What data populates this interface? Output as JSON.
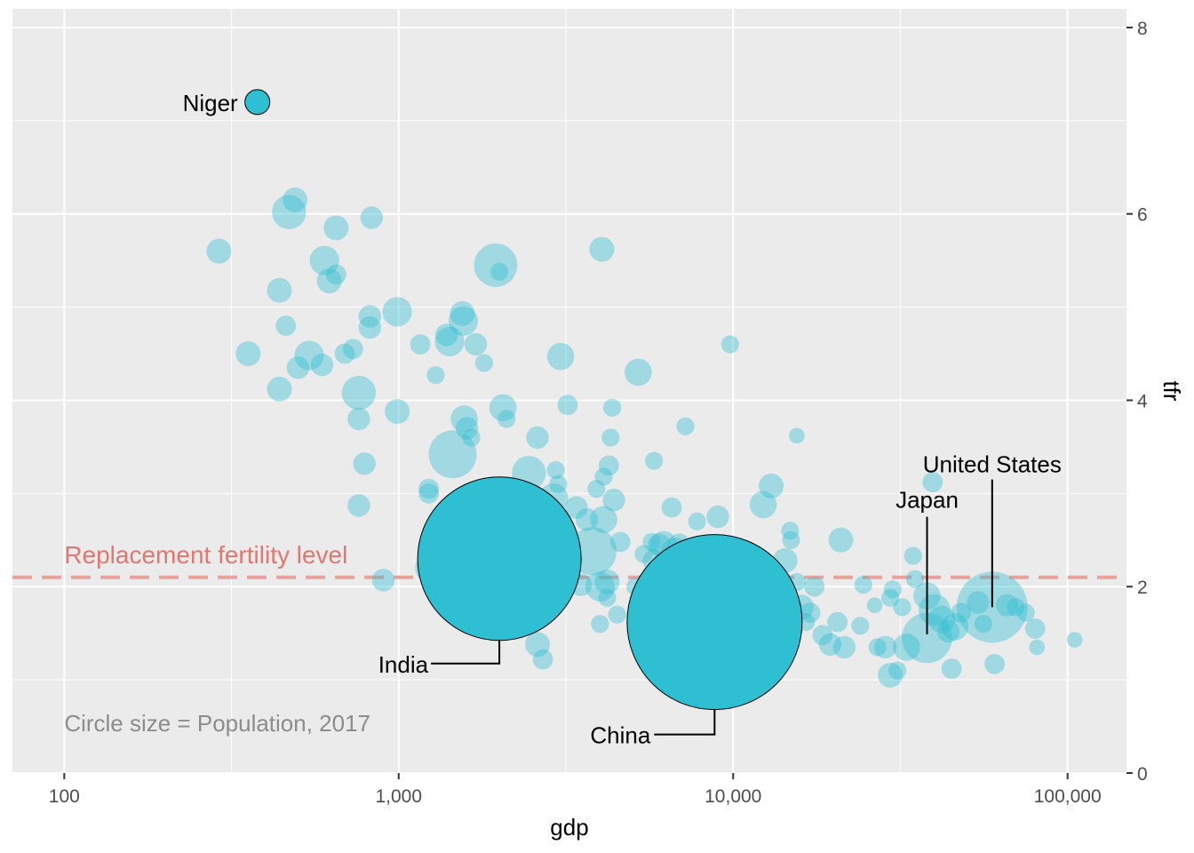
{
  "chart_data": {
    "type": "scatter",
    "xlabel": "gdp",
    "ylabel": "tfr",
    "x_scale": "log10",
    "xlim": [
      70,
      150000
    ],
    "ylim": [
      0,
      8.2
    ],
    "x_ticks": [
      100,
      1000,
      10000,
      100000
    ],
    "x_tick_labels": [
      "100",
      "1,000",
      "10,000",
      "100,000"
    ],
    "y_ticks": [
      0,
      2,
      4,
      6,
      8
    ],
    "y_tick_labels": [
      "0",
      "2",
      "4",
      "6",
      "8"
    ],
    "y_axis_side": "right",
    "grid": true,
    "point_color": "#2FBFD3",
    "highlight_color": "#2FBFD3",
    "reference_line": {
      "y": 2.1,
      "label": "Replacement fertility level",
      "color": "#E8A49C",
      "label_color": "#E07870",
      "style": "dashed"
    },
    "caption": "Circle size = Population, 2017",
    "caption_color": "#8C8C8C",
    "highlighted": [
      {
        "label": "Niger",
        "gdp": 378,
        "tfr": 7.2,
        "size": 1
      },
      {
        "label": "India",
        "gdp": 2000,
        "tfr": 2.3,
        "size": 7
      },
      {
        "label": "China",
        "gdp": 8800,
        "tfr": 1.62,
        "size": 7.5
      },
      {
        "label": "Japan",
        "gdp": 38000,
        "tfr": 1.45,
        "size": 2.1
      },
      {
        "label": "United States",
        "gdp": 59500,
        "tfr": 1.78,
        "size": 3
      }
    ],
    "points": [
      [
        290,
        5.6,
        1
      ],
      [
        355,
        4.5,
        1
      ],
      [
        440,
        5.18,
        1
      ],
      [
        440,
        4.12,
        1
      ],
      [
        470,
        6.02,
        1.4
      ],
      [
        490,
        6.15,
        1
      ],
      [
        460,
        4.8,
        0.8
      ],
      [
        500,
        4.35,
        0.9
      ],
      [
        540,
        4.48,
        1.2
      ],
      [
        590,
        4.38,
        0.9
      ],
      [
        600,
        5.5,
        1.2
      ],
      [
        620,
        5.28,
        1
      ],
      [
        650,
        5.85,
        1
      ],
      [
        650,
        5.35,
        0.8
      ],
      [
        690,
        4.5,
        0.8
      ],
      [
        730,
        4.55,
        0.8
      ],
      [
        760,
        4.08,
        1.4
      ],
      [
        760,
        3.8,
        0.9
      ],
      [
        760,
        2.87,
        0.9
      ],
      [
        790,
        3.32,
        0.9
      ],
      [
        820,
        4.9,
        0.9
      ],
      [
        820,
        4.78,
        0.9
      ],
      [
        830,
        5.96,
        0.9
      ],
      [
        900,
        2.07,
        0.9
      ],
      [
        990,
        4.95,
        1.2
      ],
      [
        990,
        3.88,
        1
      ],
      [
        1160,
        4.6,
        0.8
      ],
      [
        1230,
        3.05,
        0.8
      ],
      [
        1230,
        3.0,
        0.8
      ],
      [
        1240,
        2.2,
        1.2
      ],
      [
        1290,
        4.27,
        0.7
      ],
      [
        1380,
        2.53,
        0.9
      ],
      [
        1390,
        4.7,
        0.9
      ],
      [
        1420,
        4.63,
        1.2
      ],
      [
        1450,
        3.42,
        2
      ],
      [
        1500,
        2.1,
        1.3
      ],
      [
        1550,
        4.93,
        1
      ],
      [
        1560,
        4.85,
        1.2
      ],
      [
        1570,
        3.8,
        1.1
      ],
      [
        1600,
        3.7,
        0.9
      ],
      [
        1650,
        3.6,
        0.7
      ],
      [
        1700,
        4.6,
        0.9
      ],
      [
        1800,
        4.4,
        0.7
      ],
      [
        1950,
        5.45,
        1.8
      ],
      [
        1950,
        2.78,
        0.7
      ],
      [
        2000,
        5.38,
        0.7
      ],
      [
        2050,
        3.92,
        1.1
      ],
      [
        2100,
        3.8,
        0.7
      ],
      [
        2100,
        2.1,
        1.5
      ],
      [
        2400,
        2.65,
        1.2
      ],
      [
        2400,
        1.95,
        1.2
      ],
      [
        2450,
        3.22,
        1.4
      ],
      [
        2600,
        1.38,
        1
      ],
      [
        2600,
        3.6,
        0.9
      ],
      [
        2700,
        1.22,
        0.8
      ],
      [
        2900,
        2.95,
        1.2
      ],
      [
        2950,
        3.25,
        0.7
      ],
      [
        3000,
        3.1,
        0.7
      ],
      [
        3050,
        4.47,
        1.1
      ],
      [
        3100,
        2.48,
        1.1
      ],
      [
        3200,
        3.95,
        0.8
      ],
      [
        3300,
        2.3,
        0.8
      ],
      [
        3400,
        2.85,
        0.9
      ],
      [
        3500,
        2.02,
        0.9
      ],
      [
        3650,
        2.72,
        0.9
      ],
      [
        3800,
        2.38,
        2
      ],
      [
        3900,
        3.05,
        0.7
      ],
      [
        4000,
        1.6,
        0.7
      ],
      [
        4000,
        2.0,
        1.2
      ],
      [
        4050,
        5.62,
        1
      ],
      [
        4100,
        3.18,
        0.7
      ],
      [
        4100,
        2.72,
        1.1
      ],
      [
        4200,
        1.88,
        0.7
      ],
      [
        4200,
        2.05,
        1
      ],
      [
        4250,
        3.3,
        0.8
      ],
      [
        4300,
        3.6,
        0.7
      ],
      [
        4350,
        3.92,
        0.7
      ],
      [
        4400,
        2.93,
        0.9
      ],
      [
        4500,
        1.7,
        0.7
      ],
      [
        4600,
        2.48,
        0.8
      ],
      [
        5100,
        2.0,
        0.7
      ],
      [
        5200,
        4.3,
        1.1
      ],
      [
        5400,
        2.35,
        0.7
      ],
      [
        5600,
        1.38,
        0.7
      ],
      [
        5600,
        1.6,
        1.2
      ],
      [
        5700,
        2.48,
        0.7
      ],
      [
        5800,
        3.35,
        0.7
      ],
      [
        5800,
        2.28,
        0.9
      ],
      [
        5900,
        1.6,
        1.4
      ],
      [
        6000,
        2.45,
        0.9
      ],
      [
        6200,
        2.45,
        1.1
      ],
      [
        6300,
        1.48,
        1.1
      ],
      [
        6400,
        1.55,
        1.2
      ],
      [
        6500,
        1.82,
        1.3
      ],
      [
        6550,
        2.85,
        0.8
      ],
      [
        6600,
        1.6,
        1.1
      ],
      [
        6700,
        2.38,
        1.1
      ],
      [
        6900,
        2.45,
        0.9
      ],
      [
        7000,
        1.7,
        1.2
      ],
      [
        7200,
        3.72,
        0.7
      ],
      [
        7400,
        2.38,
        0.9
      ],
      [
        7800,
        2.7,
        0.7
      ],
      [
        8000,
        1.48,
        1
      ],
      [
        8500,
        1.9,
        1.2
      ],
      [
        9000,
        2.75,
        0.9
      ],
      [
        9200,
        2.15,
        1.4
      ],
      [
        9600,
        1.85,
        1.2
      ],
      [
        9800,
        4.6,
        0.7
      ],
      [
        10300,
        2.02,
        1.4
      ],
      [
        11000,
        1.82,
        0.9
      ],
      [
        11500,
        1.78,
        0.8
      ],
      [
        12300,
        2.88,
        1.1
      ],
      [
        13000,
        3.08,
        1
      ],
      [
        13500,
        1.38,
        1
      ],
      [
        13800,
        1.5,
        1.3
      ],
      [
        14300,
        2.28,
        1
      ],
      [
        14600,
        1.55,
        1.2
      ],
      [
        14800,
        2.6,
        0.7
      ],
      [
        14900,
        2.5,
        0.7
      ],
      [
        15000,
        1.78,
        0.8
      ],
      [
        15500,
        3.62,
        0.6
      ],
      [
        15500,
        2.05,
        0.7
      ],
      [
        16000,
        1.78,
        1
      ],
      [
        16500,
        1.62,
        0.7
      ],
      [
        17000,
        1.72,
        0.8
      ],
      [
        17500,
        2.0,
        0.8
      ],
      [
        18500,
        1.48,
        0.8
      ],
      [
        19500,
        1.38,
        0.9
      ],
      [
        20500,
        1.62,
        0.8
      ],
      [
        21000,
        2.5,
        1
      ],
      [
        21500,
        1.35,
        0.9
      ],
      [
        24000,
        1.58,
        0.7
      ],
      [
        24500,
        2.02,
        0.7
      ],
      [
        26500,
        1.8,
        0.6
      ],
      [
        27000,
        1.35,
        0.7
      ],
      [
        28500,
        1.35,
        0.9
      ],
      [
        29500,
        1.05,
        1
      ],
      [
        29500,
        1.88,
        0.7
      ],
      [
        30000,
        1.97,
        0.7
      ],
      [
        31000,
        1.1,
        0.7
      ],
      [
        32000,
        1.78,
        0.7
      ],
      [
        33000,
        1.35,
        1.1
      ],
      [
        34500,
        2.33,
        0.7
      ],
      [
        35000,
        2.08,
        0.7
      ],
      [
        38000,
        1.9,
        1.1
      ],
      [
        39500,
        3.12,
        0.8
      ],
      [
        40000,
        1.75,
        1.3
      ],
      [
        42000,
        1.65,
        1.1
      ],
      [
        44000,
        1.52,
        0.9
      ],
      [
        45000,
        1.12,
        0.8
      ],
      [
        46000,
        1.57,
        1.1
      ],
      [
        48000,
        1.72,
        0.8
      ],
      [
        54000,
        1.83,
        0.9
      ],
      [
        56000,
        1.6,
        0.7
      ],
      [
        60500,
        1.17,
        0.8
      ],
      [
        66000,
        1.8,
        0.9
      ],
      [
        70000,
        1.78,
        0.7
      ],
      [
        75000,
        1.72,
        0.7
      ],
      [
        80000,
        1.55,
        0.8
      ],
      [
        81000,
        1.35,
        0.6
      ],
      [
        105000,
        1.43,
        0.6
      ]
    ]
  }
}
